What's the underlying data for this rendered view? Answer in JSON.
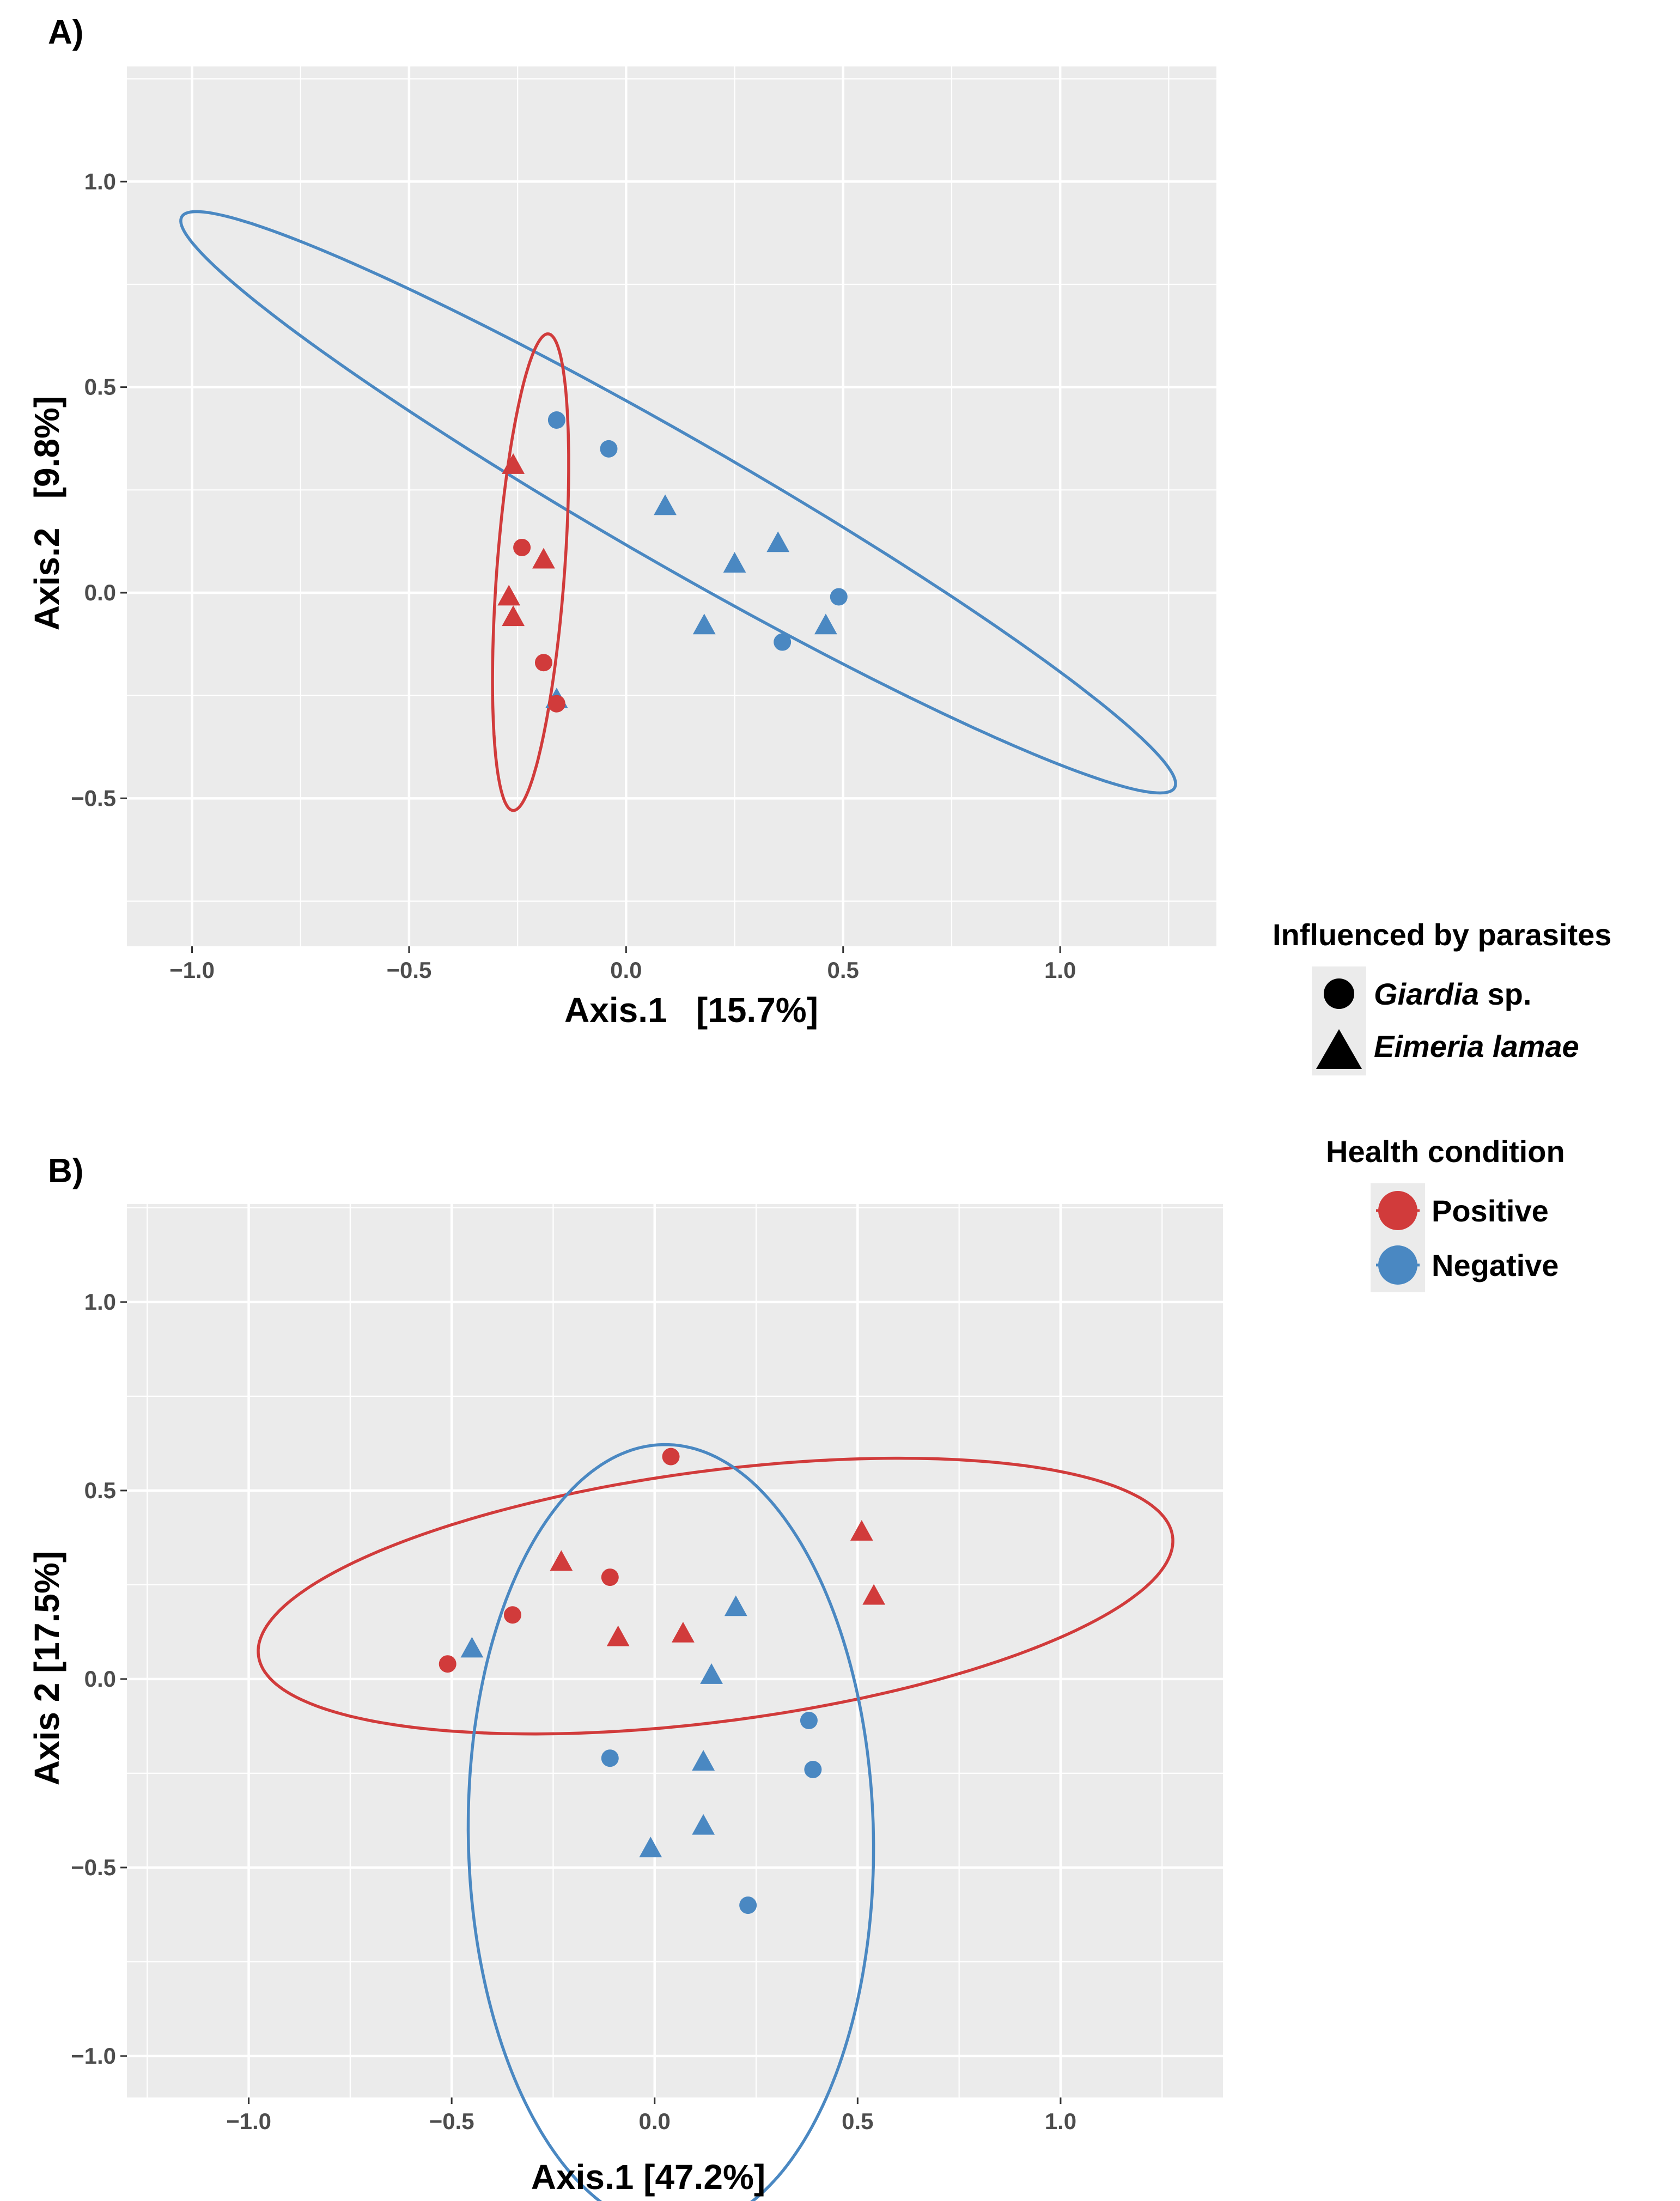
{
  "chart_data": [
    {
      "type": "scatter",
      "panel_tag": "A)",
      "xlabel": "Axis.1   [15.7%]",
      "ylabel": "Axis.2   [9.8%]",
      "xlim": [
        -1.15,
        1.36
      ],
      "ylim": [
        -0.86,
        1.28
      ],
      "x_ticks": [
        -1.0,
        -0.5,
        0.0,
        0.5,
        1.0
      ],
      "x_tick_labels": [
        "−1.0",
        "−0.5",
        "0.0",
        "0.5",
        "1.0"
      ],
      "y_ticks": [
        -0.5,
        0.0,
        0.5,
        1.0
      ],
      "y_tick_labels": [
        "−0.5",
        "0.0",
        "0.5",
        "1.0"
      ],
      "grid": true,
      "background": "#ebebeb",
      "points": [
        {
          "x": -0.16,
          "y": 0.42,
          "parasite": "Giardia sp.",
          "health": "Negative"
        },
        {
          "x": -0.04,
          "y": 0.35,
          "parasite": "Giardia sp.",
          "health": "Negative"
        },
        {
          "x": 0.09,
          "y": 0.21,
          "parasite": "Eimeria lamae",
          "health": "Negative"
        },
        {
          "x": 0.35,
          "y": 0.12,
          "parasite": "Eimeria lamae",
          "health": "Negative"
        },
        {
          "x": 0.25,
          "y": 0.07,
          "parasite": "Eimeria lamae",
          "health": "Negative"
        },
        {
          "x": 0.49,
          "y": -0.01,
          "parasite": "Giardia sp.",
          "health": "Negative"
        },
        {
          "x": 0.18,
          "y": -0.08,
          "parasite": "Eimeria lamae",
          "health": "Negative"
        },
        {
          "x": 0.46,
          "y": -0.08,
          "parasite": "Eimeria lamae",
          "health": "Negative"
        },
        {
          "x": 0.36,
          "y": -0.12,
          "parasite": "Giardia sp.",
          "health": "Negative"
        },
        {
          "x": -0.16,
          "y": -0.26,
          "parasite": "Eimeria lamae",
          "health": "Negative"
        },
        {
          "x": -0.26,
          "y": 0.31,
          "parasite": "Eimeria lamae",
          "health": "Positive"
        },
        {
          "x": -0.24,
          "y": 0.11,
          "parasite": "Giardia sp.",
          "health": "Positive"
        },
        {
          "x": -0.19,
          "y": 0.08,
          "parasite": "Eimeria lamae",
          "health": "Positive"
        },
        {
          "x": -0.27,
          "y": -0.01,
          "parasite": "Eimeria lamae",
          "health": "Positive"
        },
        {
          "x": -0.26,
          "y": -0.06,
          "parasite": "Eimeria lamae",
          "health": "Positive"
        },
        {
          "x": -0.19,
          "y": -0.17,
          "parasite": "Giardia sp.",
          "health": "Positive"
        },
        {
          "x": -0.16,
          "y": -0.27,
          "parasite": "Giardia sp.",
          "health": "Positive"
        }
      ],
      "ellipses": [
        {
          "health": "Negative",
          "cx": 0.12,
          "cy": 0.22,
          "rx": 1.338,
          "ry": 0.151,
          "angle_deg": -31.3
        },
        {
          "health": "Positive",
          "cx": -0.22,
          "cy": 0.05,
          "rx": 0.581,
          "ry": 0.078,
          "angle_deg": 86.0
        }
      ]
    },
    {
      "type": "scatter",
      "panel_tag": "B)",
      "xlabel": "Axis.1 [47.2%]",
      "ylabel": "Axis 2 [17.5%]",
      "xlim": [
        -1.3,
        1.4
      ],
      "ylim": [
        -1.11,
        1.26
      ],
      "x_ticks": [
        -1.0,
        -0.5,
        0.0,
        0.5,
        1.0
      ],
      "x_tick_labels": [
        "−1.0",
        "−0.5",
        "0.0",
        "0.5",
        "1.0"
      ],
      "y_ticks": [
        -1.0,
        -0.5,
        0.0,
        0.5,
        1.0
      ],
      "y_tick_labels": [
        "−1.0",
        "−0.5",
        "0.0",
        "0.5",
        "1.0"
      ],
      "grid": true,
      "background": "#ebebeb",
      "points": [
        {
          "x": -0.51,
          "y": 0.04,
          "parasite": "Giardia sp.",
          "health": "Positive"
        },
        {
          "x": -0.35,
          "y": 0.17,
          "parasite": "Giardia sp.",
          "health": "Positive"
        },
        {
          "x": -0.23,
          "y": 0.31,
          "parasite": "Eimeria lamae",
          "health": "Positive"
        },
        {
          "x": -0.11,
          "y": 0.27,
          "parasite": "Giardia sp.",
          "health": "Positive"
        },
        {
          "x": -0.09,
          "y": 0.11,
          "parasite": "Eimeria lamae",
          "health": "Positive"
        },
        {
          "x": 0.04,
          "y": 0.59,
          "parasite": "Giardia sp.",
          "health": "Positive"
        },
        {
          "x": 0.07,
          "y": 0.12,
          "parasite": "Eimeria lamae",
          "health": "Positive"
        },
        {
          "x": 0.51,
          "y": 0.39,
          "parasite": "Eimeria lamae",
          "health": "Positive"
        },
        {
          "x": 0.54,
          "y": 0.22,
          "parasite": "Eimeria lamae",
          "health": "Positive"
        },
        {
          "x": -0.45,
          "y": 0.08,
          "parasite": "Eimeria lamae",
          "health": "Negative"
        },
        {
          "x": 0.2,
          "y": 0.19,
          "parasite": "Eimeria lamae",
          "health": "Negative"
        },
        {
          "x": 0.14,
          "y": 0.01,
          "parasite": "Eimeria lamae",
          "health": "Negative"
        },
        {
          "x": 0.38,
          "y": -0.11,
          "parasite": "Giardia sp.",
          "health": "Negative"
        },
        {
          "x": -0.11,
          "y": -0.21,
          "parasite": "Giardia sp.",
          "health": "Negative"
        },
        {
          "x": 0.12,
          "y": -0.22,
          "parasite": "Eimeria lamae",
          "health": "Negative"
        },
        {
          "x": 0.39,
          "y": -0.24,
          "parasite": "Giardia sp.",
          "health": "Negative"
        },
        {
          "x": -0.01,
          "y": -0.45,
          "parasite": "Eimeria lamae",
          "health": "Negative"
        },
        {
          "x": 0.12,
          "y": -0.39,
          "parasite": "Eimeria lamae",
          "health": "Negative"
        },
        {
          "x": 0.23,
          "y": -0.6,
          "parasite": "Giardia sp.",
          "health": "Negative"
        }
      ],
      "ellipses": [
        {
          "health": "Positive",
          "cx": 0.15,
          "cy": 0.22,
          "rx": 1.137,
          "ry": 0.332,
          "angle_deg": 8.1
        },
        {
          "health": "Negative",
          "cx": 0.04,
          "cy": -0.42,
          "rx": 1.042,
          "ry": 0.499,
          "angle_deg": -89.0
        }
      ]
    }
  ],
  "legend": {
    "shape_title": "Influenced by parasites",
    "shape_items": [
      {
        "key": "Giardia sp.",
        "italic": "Giardia",
        "plain": " sp.",
        "shape": "circle"
      },
      {
        "key": "Eimeria lamae",
        "italic": "Eimeria lamae",
        "plain": "",
        "shape": "triangle"
      }
    ],
    "color_title": "Health condition",
    "color_items": [
      {
        "key": "Positive",
        "label": "Positive",
        "color": "#d13b3b"
      },
      {
        "key": "Negative",
        "label": "Negative",
        "color": "#4a88c2"
      }
    ]
  }
}
